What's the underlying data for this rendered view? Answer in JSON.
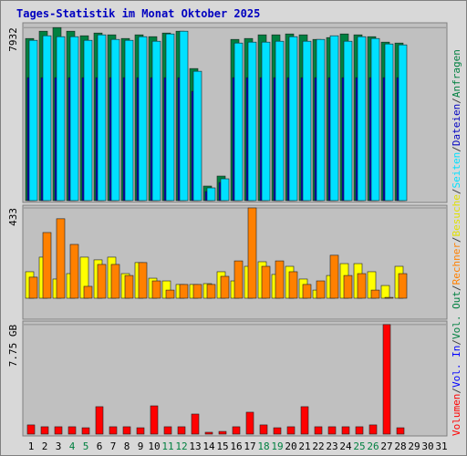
{
  "title": "Tages-Statistik im Monat Oktober 2025",
  "legend_separator": "/",
  "chart_data": [
    {
      "type": "bar",
      "ylim": [
        0,
        8150
      ],
      "yticks": [
        7932
      ],
      "series": [
        {
          "name": "Anfragen",
          "color": "#008040",
          "values": [
            7431,
            7766,
            7932,
            7766,
            7557,
            7682,
            7599,
            7432,
            7599,
            7515,
            7682,
            7766,
            6054,
            668,
            1127,
            7390,
            7432,
            7599,
            7599,
            7640,
            7599,
            7390,
            7473,
            7640,
            7599,
            7515,
            7265,
            7223,
            null,
            null,
            null
          ]
        },
        {
          "name": "Dateien",
          "color": "#0000c0",
          "values": [
            5636,
            5636,
            5636,
            5636,
            5636,
            5636,
            5636,
            5636,
            5636,
            5636,
            5636,
            5636,
            5010,
            418,
            835,
            5636,
            5636,
            5636,
            5636,
            5636,
            5636,
            5636,
            5636,
            5636,
            5636,
            5636,
            5636,
            5636,
            null,
            null,
            null
          ]
        },
        {
          "name": "Seiten",
          "color": "#00e0ff",
          "values": [
            7348,
            7557,
            7515,
            7515,
            7348,
            7599,
            7390,
            7348,
            7515,
            7306,
            7640,
            7766,
            5929,
            585,
            1002,
            7223,
            7265,
            7265,
            7306,
            7515,
            7306,
            7390,
            7557,
            7306,
            7515,
            7432,
            7181,
            7140,
            null,
            null,
            null
          ]
        }
      ]
    },
    {
      "type": "bar",
      "ylim": [
        0,
        446
      ],
      "yticks": [
        433
      ],
      "series": [
        {
          "name": "Besuche",
          "color": "#ffff00",
          "values": [
            127,
            197,
            92,
            118,
            197,
            184,
            197,
            118,
            171,
            96,
            83,
            66,
            66,
            70,
            127,
            83,
            153,
            175,
            114,
            153,
            92,
            39,
            109,
            166,
            166,
            127,
            61,
            153,
            null,
            null,
            null
          ]
        },
        {
          "name": "Rechner",
          "color": "#ff8000",
          "values": [
            101,
            315,
            381,
            258,
            57,
            162,
            162,
            109,
            171,
            83,
            39,
            66,
            66,
            66,
            105,
            179,
            433,
            153,
            179,
            127,
            66,
            83,
            206,
            109,
            118,
            39,
            4,
            118,
            null,
            null,
            null
          ]
        }
      ]
    },
    {
      "type": "bar",
      "ylim": [
        0,
        8.0
      ],
      "yticks": [
        {
          "value": 7.75,
          "label": "7.75 GB"
        }
      ],
      "categories": [
        "1",
        "2",
        "3",
        "4",
        "5",
        "6",
        "7",
        "8",
        "9",
        "10",
        "11",
        "12",
        "13",
        "14",
        "15",
        "16",
        "17",
        "18",
        "19",
        "20",
        "21",
        "22",
        "23",
        "24",
        "25",
        "26",
        "27",
        "28",
        "29",
        "30",
        "31"
      ],
      "series": [
        {
          "name": "Volumen",
          "color": "#ff0000",
          "values": [
            0.65,
            0.52,
            0.52,
            0.52,
            0.45,
            1.94,
            0.52,
            0.52,
            0.45,
            2.0,
            0.52,
            0.52,
            1.42,
            0.13,
            0.19,
            0.52,
            1.55,
            0.65,
            0.45,
            0.52,
            1.94,
            0.52,
            0.52,
            0.52,
            0.52,
            0.65,
            7.75,
            0.45,
            null,
            null,
            null
          ]
        },
        {
          "name": "Vol. In",
          "color": "#0000ff",
          "values": [
            null,
            null,
            null,
            null,
            null,
            null,
            null,
            null,
            null,
            null,
            null,
            null,
            null,
            null,
            null,
            null,
            null,
            null,
            null,
            null,
            null,
            null,
            null,
            null,
            null,
            null,
            null,
            null,
            null,
            null,
            null
          ]
        },
        {
          "name": "Vol. Out",
          "color": "#008040",
          "values": [
            null,
            null,
            null,
            null,
            null,
            null,
            null,
            null,
            null,
            null,
            null,
            null,
            null,
            null,
            null,
            null,
            null,
            null,
            null,
            null,
            null,
            null,
            null,
            null,
            null,
            null,
            null,
            null,
            null,
            null,
            null
          ]
        }
      ]
    }
  ]
}
